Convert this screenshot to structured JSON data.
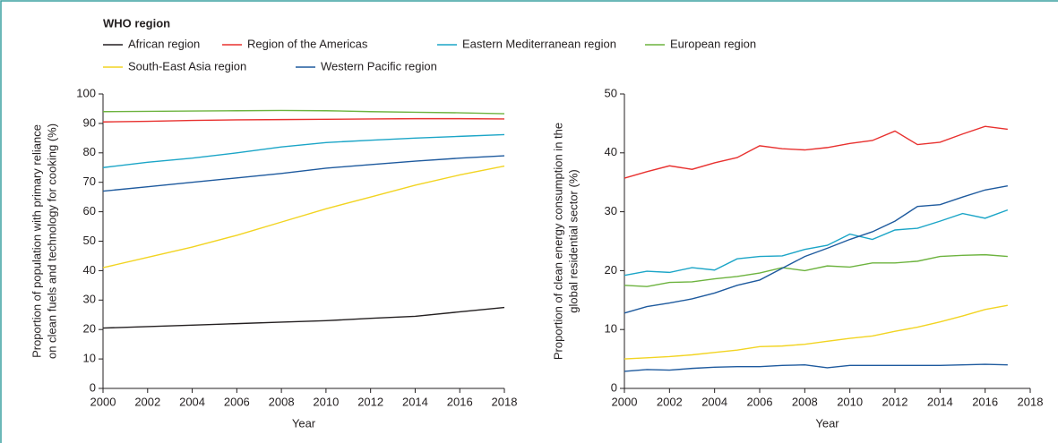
{
  "legend": {
    "title": "WHO region"
  },
  "chart_data": [
    {
      "type": "line",
      "xlabel": "Year",
      "ylabel": [
        "Proportion of population with primary reliance",
        "on clean fuels and technology for cooking (%)"
      ],
      "x": [
        2000,
        2002,
        2004,
        2006,
        2008,
        2010,
        2012,
        2014,
        2016,
        2018
      ],
      "xlim": [
        2000,
        2018
      ],
      "xticks": [
        2000,
        2002,
        2004,
        2006,
        2008,
        2010,
        2012,
        2014,
        2016,
        2018
      ],
      "ylim": [
        0,
        100
      ],
      "yticks": [
        0,
        10,
        20,
        30,
        40,
        50,
        60,
        70,
        80,
        90,
        100
      ],
      "series": [
        {
          "name": "African region",
          "color": "#231f20",
          "values": [
            20.5,
            21,
            21.5,
            22,
            22.5,
            23,
            23.8,
            24.5,
            26,
            27.5
          ]
        },
        {
          "name": "Region of the Americas",
          "color": "#e8312f",
          "values": [
            90.5,
            90.7,
            91,
            91.2,
            91.3,
            91.4,
            91.5,
            91.6,
            91.6,
            91.5
          ]
        },
        {
          "name": "Eastern Mediterranean region",
          "color": "#1ba5c7",
          "values": [
            75,
            76.8,
            78.2,
            80,
            82,
            83.5,
            84.3,
            85,
            85.6,
            86.2
          ]
        },
        {
          "name": "European region",
          "color": "#6db33f",
          "values": [
            94,
            94.1,
            94.2,
            94.3,
            94.4,
            94.3,
            94,
            93.8,
            93.6,
            93.3
          ]
        },
        {
          "name": "South-East Asia region",
          "color": "#f2d422",
          "values": [
            41,
            44.5,
            48,
            52,
            56.5,
            61,
            65,
            69,
            72.5,
            75.5
          ]
        },
        {
          "name": "Western Pacific region",
          "color": "#1e5a9e",
          "values": [
            67,
            68.5,
            70,
            71.5,
            73,
            74.8,
            76,
            77.2,
            78.2,
            79
          ]
        }
      ]
    },
    {
      "type": "line",
      "xlabel": "Year",
      "ylabel": [
        "Proportion of clean energy consumption in the",
        "global residential sector (%)"
      ],
      "x": [
        2000,
        2001,
        2002,
        2003,
        2004,
        2005,
        2006,
        2007,
        2008,
        2009,
        2010,
        2011,
        2012,
        2013,
        2014,
        2015,
        2016,
        2017
      ],
      "xlim": [
        2000,
        2018
      ],
      "xticks": [
        2000,
        2002,
        2004,
        2006,
        2008,
        2010,
        2012,
        2014,
        2016,
        2018
      ],
      "ylim": [
        0,
        50
      ],
      "yticks": [
        0,
        10,
        20,
        30,
        40,
        50
      ],
      "series": [
        {
          "name": "African region",
          "color": "#1e5a9e",
          "values": [
            2.9,
            3.2,
            3.1,
            3.4,
            3.6,
            3.7,
            3.7,
            3.9,
            4,
            3.5,
            3.9,
            3.9,
            3.9,
            3.9,
            3.9,
            4,
            4.1,
            4
          ]
        },
        {
          "name": "Region of the Americas",
          "color": "#e8312f",
          "values": [
            35.7,
            36.8,
            37.8,
            37.2,
            38.3,
            39.2,
            41.2,
            40.7,
            40.5,
            40.9,
            41.6,
            42.1,
            43.7,
            41.4,
            41.8,
            43.2,
            44.5,
            44
          ]
        },
        {
          "name": "Eastern Mediterranean region",
          "color": "#1ba5c7",
          "values": [
            19.2,
            19.9,
            19.7,
            20.5,
            20.1,
            22,
            22.4,
            22.5,
            23.6,
            24.3,
            26.2,
            25.3,
            26.9,
            27.2,
            28.4,
            29.7,
            28.9,
            30.3
          ]
        },
        {
          "name": "European region",
          "color": "#6db33f",
          "values": [
            17.5,
            17.3,
            18,
            18.1,
            18.6,
            19,
            19.6,
            20.5,
            20,
            20.8,
            20.6,
            21.3,
            21.3,
            21.6,
            22.4,
            22.6,
            22.7,
            22.4
          ]
        },
        {
          "name": "South-East Asia region",
          "color": "#f2d422",
          "values": [
            5,
            5.2,
            5.4,
            5.7,
            6.1,
            6.5,
            7.1,
            7.2,
            7.5,
            8,
            8.5,
            8.9,
            9.7,
            10.4,
            11.3,
            12.3,
            13.4,
            14.1
          ]
        },
        {
          "name": "Western Pacific region",
          "color": "#1e5a9e",
          "values": [
            12.8,
            13.9,
            14.5,
            15.2,
            16.2,
            17.5,
            18.4,
            20.4,
            22.4,
            23.8,
            25.3,
            26.6,
            28.4,
            30.9,
            31.2,
            32.5,
            33.7,
            34.4
          ]
        }
      ]
    }
  ]
}
